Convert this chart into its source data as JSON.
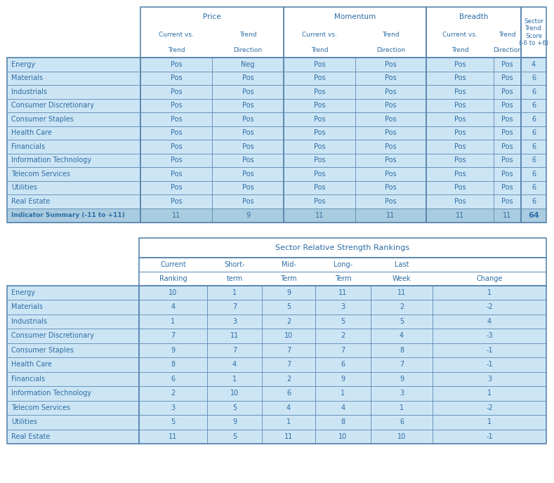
{
  "table1": {
    "sectors": [
      "Energy",
      "Materials",
      "Industrials",
      "Consumer Discretionary",
      "Consumer Staples",
      "Health Care",
      "Financials",
      "Information Technology",
      "Telecom Services",
      "Utilities",
      "Real Estate"
    ],
    "data": [
      [
        "Pos",
        "Neg",
        "Pos",
        "Pos",
        "Pos",
        "Pos",
        "4"
      ],
      [
        "Pos",
        "Pos",
        "Pos",
        "Pos",
        "Pos",
        "Pos",
        "6"
      ],
      [
        "Pos",
        "Pos",
        "Pos",
        "Pos",
        "Pos",
        "Pos",
        "6"
      ],
      [
        "Pos",
        "Pos",
        "Pos",
        "Pos",
        "Pos",
        "Pos",
        "6"
      ],
      [
        "Pos",
        "Pos",
        "Pos",
        "Pos",
        "Pos",
        "Pos",
        "6"
      ],
      [
        "Pos",
        "Pos",
        "Pos",
        "Pos",
        "Pos",
        "Pos",
        "6"
      ],
      [
        "Pos",
        "Pos",
        "Pos",
        "Pos",
        "Pos",
        "Pos",
        "6"
      ],
      [
        "Pos",
        "Pos",
        "Pos",
        "Pos",
        "Pos",
        "Pos",
        "6"
      ],
      [
        "Pos",
        "Pos",
        "Pos",
        "Pos",
        "Pos",
        "Pos",
        "6"
      ],
      [
        "Pos",
        "Pos",
        "Pos",
        "Pos",
        "Pos",
        "Pos",
        "6"
      ],
      [
        "Pos",
        "Pos",
        "Pos",
        "Pos",
        "Pos",
        "Pos",
        "6"
      ]
    ],
    "summary_label": "Indicator Summary (-11 to +11)",
    "summary_vals": [
      "11",
      "9",
      "11",
      "11",
      "11",
      "11",
      "64"
    ],
    "row_bg": "#cce5f5",
    "summary_bg": "#aacce0",
    "text_color": "#2e6da4",
    "border_color": "#5a87b0"
  },
  "table2": {
    "title": "Sector Relative Strength Rankings",
    "sectors": [
      "Energy",
      "Materials",
      "Industrials",
      "Consumer Discretionary",
      "Consumer Staples",
      "Health Care",
      "Financials",
      "Information Technology",
      "Telecom Services",
      "Utilities",
      "Real Estate"
    ],
    "data": [
      [
        "10",
        "1",
        "9",
        "11",
        "11",
        "1"
      ],
      [
        "4",
        "7",
        "5",
        "3",
        "2",
        "-2"
      ],
      [
        "1",
        "3",
        "2",
        "5",
        "5",
        "4"
      ],
      [
        "7",
        "11",
        "10",
        "2",
        "4",
        "-3"
      ],
      [
        "9",
        "7",
        "7",
        "7",
        "8",
        "-1"
      ],
      [
        "8",
        "4",
        "7",
        "6",
        "7",
        "-1"
      ],
      [
        "6",
        "1",
        "2",
        "9",
        "9",
        "3"
      ],
      [
        "2",
        "10",
        "6",
        "1",
        "3",
        "1"
      ],
      [
        "3",
        "5",
        "4",
        "4",
        "1",
        "-2"
      ],
      [
        "5",
        "9",
        "1",
        "8",
        "6",
        "1"
      ],
      [
        "11",
        "5",
        "11",
        "10",
        "10",
        "-1"
      ]
    ],
    "row_bg": "#cce5f5",
    "text_color": "#2e6da4",
    "border_color": "#5a87b0"
  },
  "bg_color": "#ffffff",
  "figwidth": 7.89,
  "figheight": 6.88,
  "dpi": 100
}
